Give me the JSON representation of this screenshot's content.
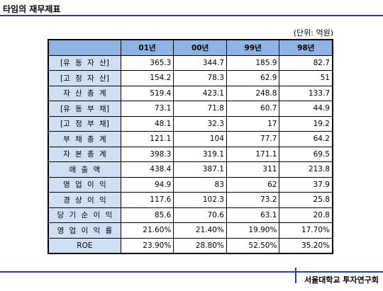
{
  "header": {
    "title": "타임의 재무제표"
  },
  "unit": "(단위: 억원)",
  "table": {
    "columns": [
      "01년",
      "00년",
      "99년",
      "98년"
    ],
    "rows": [
      [
        "[유 동 자 산]",
        "365.3",
        "344.7",
        "185.9",
        "82.7"
      ],
      [
        "[고 정 자 산]",
        "154.2",
        "78.3",
        "62.9",
        "51"
      ],
      [
        "자 산 총 계",
        "519.4",
        "423.1",
        "248.8",
        "133.7"
      ],
      [
        "[유 동 부 채]",
        "73.1",
        "71.8",
        "60.7",
        "44.9"
      ],
      [
        "[고 정 부 채]",
        "48.1",
        "32.3",
        "17",
        "19.2"
      ],
      [
        "부 채 총 계",
        "121.1",
        "104",
        "77.7",
        "64.2"
      ],
      [
        "자 본 총 계",
        "398.3",
        "319.1",
        "171.1",
        "69.5"
      ],
      [
        "매 출 액",
        "438.4",
        "387.1",
        "311",
        "213.8"
      ],
      [
        "영 업 이 익",
        "94.9",
        "83",
        "62",
        "37.9"
      ],
      [
        "경 상 이 익",
        "117.6",
        "102.3",
        "73.2",
        "25.8"
      ],
      [
        "당 기 순 이 익",
        "85.6",
        "70.6",
        "63.1",
        "20.8"
      ],
      [
        "영 업 이 익 률",
        "21.60%",
        "21.40%",
        "19.90%",
        "17.70%"
      ],
      [
        "ROE",
        "23.90%",
        "28.80%",
        "52.50%",
        "35.20%"
      ]
    ]
  },
  "footer": {
    "text": "서울대학교 투자연구회"
  }
}
